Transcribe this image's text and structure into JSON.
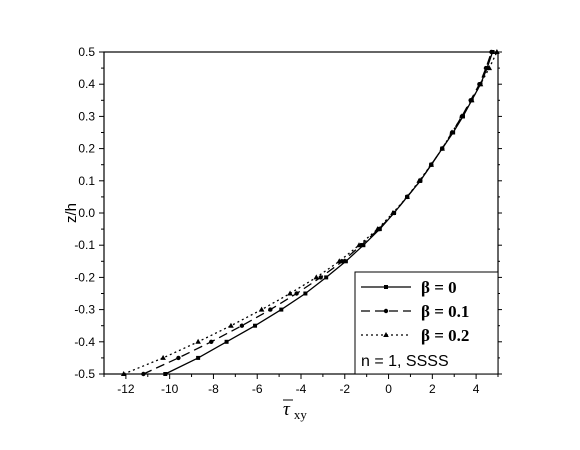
{
  "chart_data": {
    "type": "line",
    "xlabel_symbol": "τ",
    "xlabel_subscript": "xy",
    "ylabel": "z/h",
    "xlim": [
      -13,
      5
    ],
    "ylim": [
      -0.5,
      0.5
    ],
    "xticks": [
      -12,
      -10,
      -8,
      -6,
      -4,
      -2,
      0,
      2,
      4
    ],
    "yticks": [
      -0.5,
      -0.4,
      -0.3,
      -0.2,
      -0.1,
      0.0,
      0.1,
      0.2,
      0.3,
      0.4,
      0.5
    ],
    "grid": false,
    "legend_position": "bottom-right",
    "annotation": "n = 1, SSSS",
    "series": [
      {
        "name": "β = 0",
        "line_style": "solid",
        "marker": "square",
        "y": [
          -0.5,
          -0.45,
          -0.4,
          -0.35,
          -0.3,
          -0.25,
          -0.2,
          -0.15,
          -0.1,
          -0.05,
          0.0,
          0.05,
          0.1,
          0.15,
          0.2,
          0.25,
          0.3,
          0.35,
          0.4,
          0.45,
          0.5
        ],
        "x": [
          -10.2,
          -8.7,
          -7.4,
          -6.1,
          -4.9,
          -3.8,
          -2.85,
          -1.95,
          -1.15,
          -0.4,
          0.25,
          0.85,
          1.45,
          1.95,
          2.45,
          2.95,
          3.4,
          3.8,
          4.2,
          4.5,
          4.75
        ]
      },
      {
        "name": "β = 0.1",
        "line_style": "dashed",
        "marker": "circle",
        "y": [
          -0.5,
          -0.45,
          -0.4,
          -0.35,
          -0.3,
          -0.25,
          -0.2,
          -0.15,
          -0.1,
          -0.05,
          0.0,
          0.05,
          0.1,
          0.15,
          0.2,
          0.25,
          0.3,
          0.35,
          0.4,
          0.45,
          0.5
        ],
        "x": [
          -11.2,
          -9.6,
          -8.1,
          -6.7,
          -5.4,
          -4.2,
          -3.1,
          -2.1,
          -1.25,
          -0.45,
          0.25,
          0.85,
          1.45,
          1.95,
          2.45,
          2.9,
          3.35,
          3.75,
          4.15,
          4.45,
          4.7
        ]
      },
      {
        "name": "β = 0.2",
        "line_style": "dotted",
        "marker": "triangle",
        "y": [
          -0.5,
          -0.45,
          -0.4,
          -0.35,
          -0.3,
          -0.25,
          -0.2,
          -0.15,
          -0.1,
          -0.05,
          0.0,
          0.05,
          0.1,
          0.15,
          0.2,
          0.25,
          0.3,
          0.35,
          0.4,
          0.45,
          0.5
        ],
        "x": [
          -12.1,
          -10.3,
          -8.7,
          -7.2,
          -5.8,
          -4.5,
          -3.3,
          -2.25,
          -1.35,
          -0.5,
          0.2,
          0.85,
          1.4,
          1.95,
          2.45,
          2.9,
          3.35,
          3.8,
          4.2,
          4.6,
          4.95
        ]
      }
    ]
  }
}
